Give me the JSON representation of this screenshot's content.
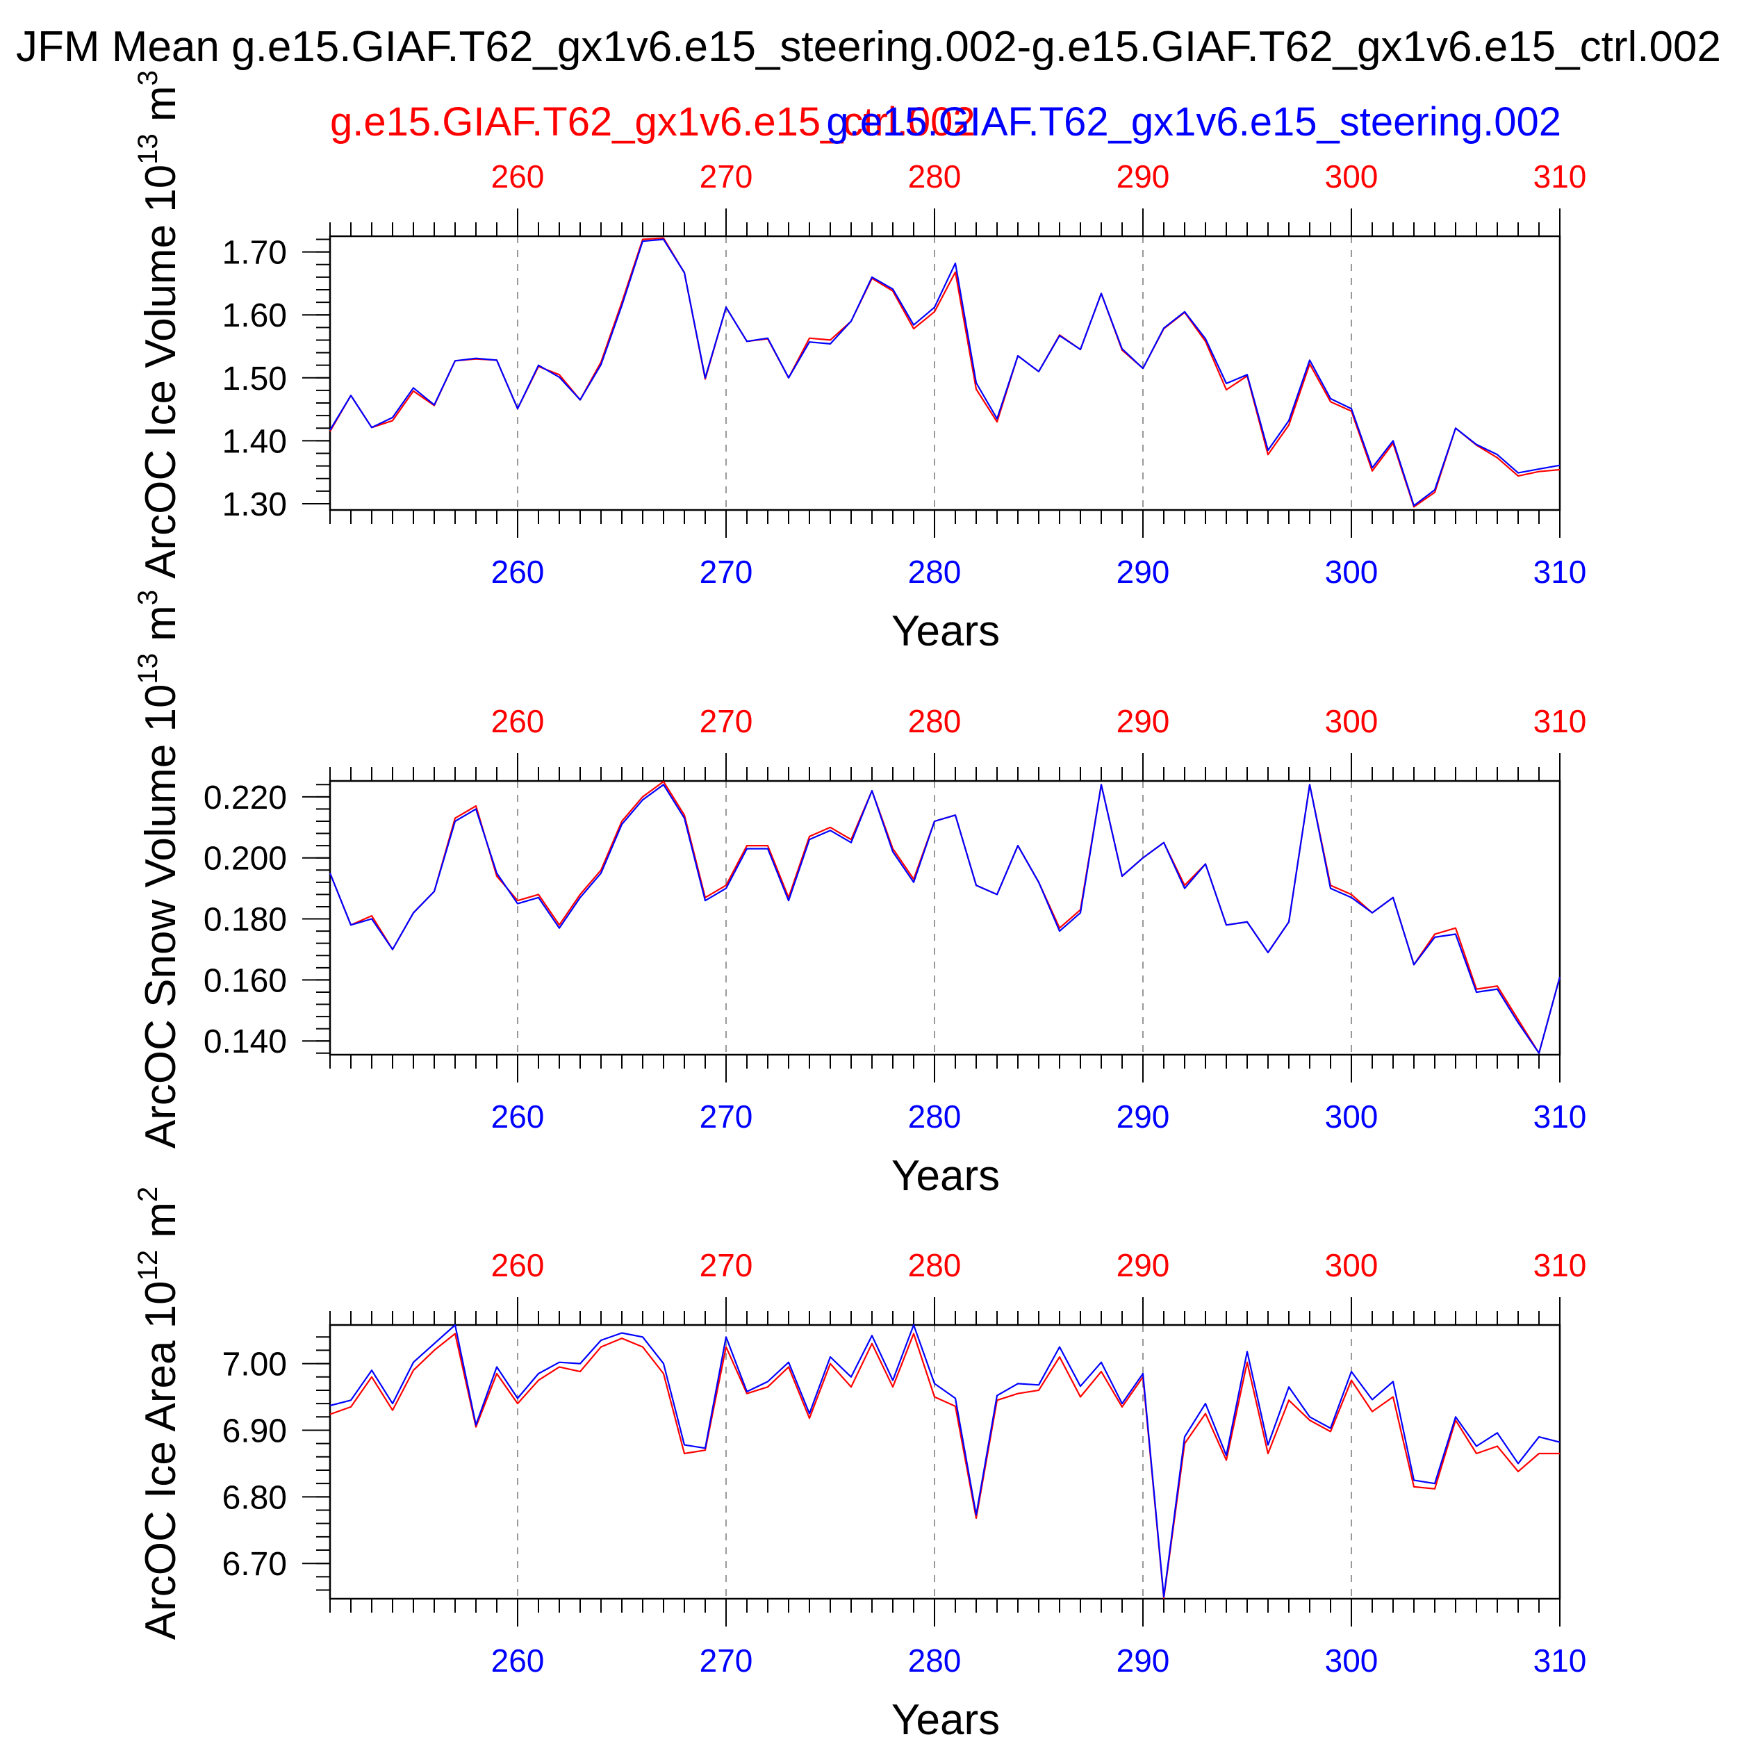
{
  "title": "JFM Mean g.e15.GIAF.T62_gx1v6.e15_steering.002-g.e15.GIAF.T62_gx1v6.e15_ctrl.002",
  "legend": {
    "ctrl": "g.e15.GIAF.T62_gx1v6.e15_ctrl.002",
    "steering": "g.e15.GIAF.T62_gx1v6.e15_steering.002"
  },
  "colors": {
    "ctrl": "#ff0000",
    "steering": "#0000ff",
    "axis": "#000000",
    "grid": "#999999"
  },
  "chart_data": [
    {
      "type": "line",
      "name": "ice-volume",
      "ylabel": "ArcOC Ice Volume 10",
      "yunit_exp": "13",
      "yunit": "m",
      "yunit_pow": "3",
      "xlabel": "Years",
      "xlim": [
        251,
        310
      ],
      "ylim": [
        1.29,
        1.725
      ],
      "yticks": [
        1.3,
        1.4,
        1.5,
        1.6,
        1.7
      ],
      "yticklabels": [
        "1.30",
        "1.40",
        "1.50",
        "1.60",
        "1.70"
      ],
      "xticks": [
        260,
        270,
        280,
        290,
        300,
        310
      ],
      "xticklabels": [
        "260",
        "270",
        "280",
        "290",
        "300",
        "310"
      ],
      "x": [
        251,
        252,
        253,
        254,
        255,
        256,
        257,
        258,
        259,
        260,
        261,
        262,
        263,
        264,
        265,
        266,
        267,
        268,
        269,
        270,
        271,
        272,
        273,
        274,
        275,
        276,
        277,
        278,
        279,
        280,
        281,
        282,
        283,
        284,
        285,
        286,
        287,
        288,
        289,
        290,
        291,
        292,
        293,
        294,
        295,
        296,
        297,
        298,
        299,
        300,
        301,
        302,
        303,
        304,
        305,
        306,
        307,
        308,
        309,
        310
      ],
      "series": [
        {
          "name": "g.e15.GIAF.T62_gx1v6.e15_ctrl.002",
          "values": [
            1.415,
            1.472,
            1.421,
            1.432,
            1.479,
            1.456,
            1.527,
            1.53,
            1.528,
            1.451,
            1.518,
            1.505,
            1.465,
            1.525,
            1.62,
            1.72,
            1.722,
            1.667,
            1.498,
            1.612,
            1.558,
            1.562,
            1.5,
            1.563,
            1.56,
            1.59,
            1.658,
            1.638,
            1.578,
            1.605,
            1.668,
            1.482,
            1.43,
            1.535,
            1.51,
            1.568,
            1.545,
            1.634,
            1.544,
            1.515,
            1.578,
            1.604,
            1.558,
            1.481,
            1.503,
            1.378,
            1.425,
            1.522,
            1.462,
            1.447,
            1.352,
            1.396,
            1.295,
            1.318,
            1.42,
            1.393,
            1.373,
            1.344,
            1.351,
            1.354
          ]
        },
        {
          "name": "g.e15.GIAF.T62_gx1v6.e15_steering.002",
          "values": [
            1.417,
            1.472,
            1.421,
            1.437,
            1.484,
            1.457,
            1.527,
            1.531,
            1.528,
            1.451,
            1.52,
            1.501,
            1.465,
            1.521,
            1.615,
            1.717,
            1.72,
            1.667,
            1.5,
            1.612,
            1.558,
            1.563,
            1.5,
            1.557,
            1.554,
            1.59,
            1.66,
            1.641,
            1.584,
            1.612,
            1.682,
            1.492,
            1.435,
            1.535,
            1.51,
            1.567,
            1.545,
            1.634,
            1.546,
            1.515,
            1.579,
            1.605,
            1.562,
            1.491,
            1.505,
            1.385,
            1.432,
            1.528,
            1.467,
            1.451,
            1.357,
            1.4,
            1.297,
            1.322,
            1.42,
            1.394,
            1.378,
            1.349,
            1.355,
            1.361
          ]
        }
      ]
    },
    {
      "type": "line",
      "name": "snow-volume",
      "ylabel": "ArcOC Snow Volume 10",
      "yunit_exp": "13",
      "yunit": "m",
      "yunit_pow": "3",
      "xlabel": "Years",
      "xlim": [
        251,
        310
      ],
      "ylim": [
        0.1355,
        0.2252
      ],
      "yticks": [
        0.14,
        0.16,
        0.18,
        0.2,
        0.22
      ],
      "yticklabels": [
        "0.140",
        "0.160",
        "0.180",
        "0.200",
        "0.220"
      ],
      "xticks": [
        260,
        270,
        280,
        290,
        300,
        310
      ],
      "xticklabels": [
        "260",
        "270",
        "280",
        "290",
        "300",
        "310"
      ],
      "x": [
        251,
        252,
        253,
        254,
        255,
        256,
        257,
        258,
        259,
        260,
        261,
        262,
        263,
        264,
        265,
        266,
        267,
        268,
        269,
        270,
        271,
        272,
        273,
        274,
        275,
        276,
        277,
        278,
        279,
        280,
        281,
        282,
        283,
        284,
        285,
        286,
        287,
        288,
        289,
        290,
        291,
        292,
        293,
        294,
        295,
        296,
        297,
        298,
        299,
        300,
        301,
        302,
        303,
        304,
        305,
        306,
        307,
        308,
        309,
        310
      ],
      "series": [
        {
          "name": "g.e15.GIAF.T62_gx1v6.e15_ctrl.002",
          "values": [
            0.195,
            0.178,
            0.181,
            0.17,
            0.182,
            0.189,
            0.213,
            0.217,
            0.194,
            0.186,
            0.188,
            0.178,
            0.188,
            0.196,
            0.212,
            0.22,
            0.225,
            0.214,
            0.187,
            0.191,
            0.204,
            0.204,
            0.187,
            0.207,
            0.21,
            0.206,
            0.222,
            0.203,
            0.193,
            0.212,
            0.214,
            0.191,
            0.188,
            0.204,
            0.192,
            0.177,
            0.183,
            0.224,
            0.194,
            0.2,
            0.205,
            0.191,
            0.198,
            0.178,
            0.179,
            0.169,
            0.179,
            0.224,
            0.191,
            0.188,
            0.182,
            0.187,
            0.165,
            0.175,
            0.177,
            0.157,
            0.158,
            0.147,
            0.136,
            0.161
          ]
        },
        {
          "name": "g.e15.GIAF.T62_gx1v6.e15_steering.002",
          "values": [
            0.195,
            0.178,
            0.18,
            0.17,
            0.182,
            0.189,
            0.212,
            0.216,
            0.195,
            0.185,
            0.187,
            0.177,
            0.187,
            0.195,
            0.211,
            0.219,
            0.224,
            0.213,
            0.186,
            0.19,
            0.203,
            0.203,
            0.186,
            0.206,
            0.209,
            0.205,
            0.222,
            0.202,
            0.192,
            0.212,
            0.214,
            0.191,
            0.188,
            0.204,
            0.192,
            0.176,
            0.182,
            0.224,
            0.194,
            0.2,
            0.205,
            0.19,
            0.198,
            0.178,
            0.179,
            0.169,
            0.179,
            0.224,
            0.19,
            0.187,
            0.182,
            0.187,
            0.165,
            0.174,
            0.175,
            0.156,
            0.157,
            0.146,
            0.136,
            0.161
          ]
        }
      ]
    },
    {
      "type": "line",
      "name": "ice-area",
      "ylabel": "ArcOC Ice Area 10",
      "yunit_exp": "12",
      "yunit": "m",
      "yunit_pow": "2",
      "xlabel": "Years",
      "xlim": [
        251,
        310
      ],
      "ylim": [
        6.647,
        7.058
      ],
      "yticks": [
        6.7,
        6.8,
        6.9,
        7.0
      ],
      "yticklabels": [
        "6.70",
        "6.80",
        "6.90",
        "7.00"
      ],
      "xticks": [
        260,
        270,
        280,
        290,
        300,
        310
      ],
      "xticklabels": [
        "260",
        "270",
        "280",
        "290",
        "300",
        "310"
      ],
      "x": [
        251,
        252,
        253,
        254,
        255,
        256,
        257,
        258,
        259,
        260,
        261,
        262,
        263,
        264,
        265,
        266,
        267,
        268,
        269,
        270,
        271,
        272,
        273,
        274,
        275,
        276,
        277,
        278,
        279,
        280,
        281,
        282,
        283,
        284,
        285,
        286,
        287,
        288,
        289,
        290,
        291,
        292,
        293,
        294,
        295,
        296,
        297,
        298,
        299,
        300,
        301,
        302,
        303,
        304,
        305,
        306,
        307,
        308,
        309,
        310
      ],
      "series": [
        {
          "name": "g.e15.GIAF.T62_gx1v6.e15_ctrl.002",
          "values": [
            6.924,
            6.935,
            6.98,
            6.93,
            6.99,
            7.02,
            7.045,
            6.905,
            6.985,
            6.94,
            6.975,
            6.995,
            6.988,
            7.025,
            7.038,
            7.025,
            6.985,
            6.865,
            6.87,
            7.025,
            6.955,
            6.965,
            6.995,
            6.918,
            7.0,
            6.965,
            7.03,
            6.965,
            7.045,
            6.95,
            6.936,
            6.768,
            6.945,
            6.955,
            6.96,
            7.01,
            6.95,
            6.988,
            6.935,
            6.98,
            6.648,
            6.88,
            6.925,
            6.855,
            7.002,
            6.865,
            6.945,
            6.915,
            6.898,
            6.975,
            6.928,
            6.95,
            6.815,
            6.812,
            6.915,
            6.865,
            6.876,
            6.838,
            6.865,
            6.865
          ]
        },
        {
          "name": "g.e15.GIAF.T62_gx1v6.e15_steering.002",
          "values": [
            6.937,
            6.945,
            6.99,
            6.94,
            7.002,
            7.03,
            7.058,
            6.908,
            6.995,
            6.948,
            6.985,
            7.002,
            7.0,
            7.035,
            7.046,
            7.04,
            7.0,
            6.878,
            6.873,
            7.04,
            6.958,
            6.973,
            7.002,
            6.925,
            7.01,
            6.98,
            7.042,
            6.975,
            7.058,
            6.97,
            6.948,
            6.773,
            6.952,
            6.97,
            6.968,
            7.025,
            6.966,
            7.002,
            6.94,
            6.985,
            6.65,
            6.89,
            6.94,
            6.862,
            7.018,
            6.878,
            6.965,
            6.92,
            6.903,
            6.988,
            6.946,
            6.973,
            6.825,
            6.82,
            6.92,
            6.876,
            6.896,
            6.85,
            6.89,
            6.882
          ]
        }
      ]
    }
  ]
}
